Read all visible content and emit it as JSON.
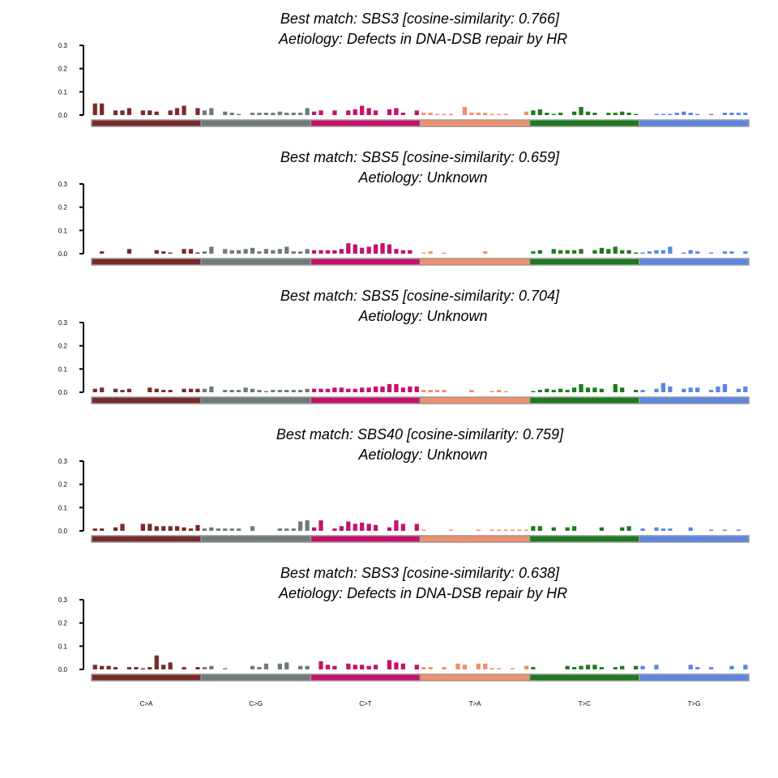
{
  "chart_data": {
    "type": "bar",
    "categories": [
      "C>A",
      "C>G",
      "C>T",
      "T>A",
      "T>C",
      "T>G"
    ],
    "category_colors": [
      "#7a2a2a",
      "#6e7b7b",
      "#c8106a",
      "#f28e6c",
      "#1e7a1e",
      "#5b86e5"
    ],
    "yticks": [
      "0.0",
      "0.1",
      "0.2",
      "0.3"
    ],
    "ylim": [
      0,
      0.3
    ],
    "panels": [
      {
        "title_line1": "Best match: SBS3 [cosine-similarity: 0.766]",
        "title_line2": "Aetiology: Defects in DNA-DSB repair by HR",
        "values": [
          [
            0.05,
            0.05,
            0.0,
            0.02,
            0.02,
            0.03,
            0.0,
            0.02,
            0.02,
            0.015,
            0.0,
            0.02,
            0.03,
            0.04,
            0.0,
            0.03
          ],
          [
            0.02,
            0.03,
            0.0,
            0.015,
            0.01,
            0.005,
            0.0,
            0.01,
            0.01,
            0.01,
            0.01,
            0.015,
            0.01,
            0.01,
            0.01,
            0.03
          ],
          [
            0.015,
            0.02,
            0.0,
            0.02,
            0.0,
            0.02,
            0.025,
            0.04,
            0.03,
            0.02,
            0.0,
            0.025,
            0.03,
            0.01,
            0.0,
            0.02
          ],
          [
            0.01,
            0.01,
            0.005,
            0.005,
            0.005,
            0.0,
            0.035,
            0.01,
            0.01,
            0.01,
            0.005,
            0.005,
            0.005,
            0.0,
            0.0,
            0.015
          ],
          [
            0.02,
            0.025,
            0.01,
            0.005,
            0.01,
            0.0,
            0.015,
            0.035,
            0.015,
            0.01,
            0.0,
            0.01,
            0.01,
            0.015,
            0.01,
            0.005
          ],
          [
            0.0,
            0.0,
            0.005,
            0.005,
            0.005,
            0.01,
            0.015,
            0.01,
            0.005,
            0.0,
            0.005,
            0.0,
            0.01,
            0.01,
            0.01,
            0.01
          ]
        ]
      },
      {
        "title_line1": "Best match: SBS5 [cosine-similarity: 0.659]",
        "title_line2": "Aetiology: Unknown",
        "values": [
          [
            0.0,
            0.01,
            0.0,
            0.0,
            0.0,
            0.02,
            0.0,
            0.0,
            0.0,
            0.015,
            0.01,
            0.005,
            0.0,
            0.02,
            0.02,
            0.005
          ],
          [
            0.01,
            0.03,
            0.0,
            0.02,
            0.015,
            0.015,
            0.02,
            0.025,
            0.01,
            0.02,
            0.015,
            0.02,
            0.03,
            0.01,
            0.01,
            0.02
          ],
          [
            0.015,
            0.015,
            0.015,
            0.015,
            0.02,
            0.045,
            0.04,
            0.025,
            0.03,
            0.04,
            0.045,
            0.04,
            0.02,
            0.015,
            0.015,
            0.0
          ],
          [
            0.005,
            0.01,
            0.0,
            0.005,
            0.0,
            0.0,
            0.0,
            0.0,
            0.0,
            0.01,
            0.0,
            0.0,
            0.0,
            0.0,
            0.0,
            0.0
          ],
          [
            0.01,
            0.015,
            0.0,
            0.02,
            0.015,
            0.015,
            0.015,
            0.02,
            0.0,
            0.015,
            0.025,
            0.02,
            0.03,
            0.015,
            0.015,
            0.005
          ],
          [
            0.005,
            0.01,
            0.015,
            0.015,
            0.03,
            0.0,
            0.005,
            0.015,
            0.01,
            0.0,
            0.005,
            0.0,
            0.01,
            0.01,
            0.0,
            0.01
          ]
        ]
      },
      {
        "title_line1": "Best match: SBS5 [cosine-similarity: 0.704]",
        "title_line2": "Aetiology: Unknown",
        "values": [
          [
            0.015,
            0.02,
            0.0,
            0.015,
            0.01,
            0.015,
            0.0,
            0.0,
            0.02,
            0.015,
            0.01,
            0.01,
            0.0,
            0.015,
            0.015,
            0.015
          ],
          [
            0.015,
            0.025,
            0.0,
            0.01,
            0.01,
            0.01,
            0.02,
            0.015,
            0.01,
            0.005,
            0.01,
            0.01,
            0.01,
            0.01,
            0.01,
            0.015
          ],
          [
            0.015,
            0.015,
            0.015,
            0.02,
            0.02,
            0.015,
            0.015,
            0.02,
            0.02,
            0.025,
            0.025,
            0.035,
            0.035,
            0.02,
            0.025,
            0.025
          ],
          [
            0.01,
            0.01,
            0.01,
            0.01,
            0.0,
            0.0,
            0.0,
            0.01,
            0.0,
            0.0,
            0.005,
            0.01,
            0.005,
            0.0,
            0.0,
            0.0
          ],
          [
            0.005,
            0.01,
            0.015,
            0.01,
            0.015,
            0.01,
            0.02,
            0.035,
            0.02,
            0.02,
            0.015,
            0.0,
            0.035,
            0.02,
            0.0,
            0.01
          ],
          [
            0.01,
            0.0,
            0.015,
            0.04,
            0.025,
            0.0,
            0.015,
            0.02,
            0.02,
            0.0,
            0.01,
            0.025,
            0.035,
            0.0,
            0.015,
            0.025
          ]
        ]
      },
      {
        "title_line1": "Best match: SBS40 [cosine-similarity: 0.759]",
        "title_line2": "Aetiology: Unknown",
        "values": [
          [
            0.01,
            0.01,
            0.0,
            0.015,
            0.03,
            0.0,
            0.0,
            0.03,
            0.03,
            0.02,
            0.02,
            0.02,
            0.02,
            0.015,
            0.01,
            0.025
          ],
          [
            0.01,
            0.015,
            0.01,
            0.01,
            0.01,
            0.01,
            0.0,
            0.02,
            0.0,
            0.0,
            0.0,
            0.01,
            0.01,
            0.01,
            0.04,
            0.045
          ],
          [
            0.015,
            0.045,
            0.0,
            0.01,
            0.02,
            0.04,
            0.03,
            0.035,
            0.03,
            0.025,
            0.0,
            0.015,
            0.045,
            0.03,
            0.0,
            0.03
          ],
          [
            0.005,
            0.0,
            0.0,
            0.0,
            0.005,
            0.0,
            0.0,
            0.0,
            0.005,
            0.0,
            0.005,
            0.005,
            0.005,
            0.005,
            0.005,
            0.005
          ],
          [
            0.02,
            0.02,
            0.0,
            0.015,
            0.0,
            0.015,
            0.02,
            0.0,
            0.0,
            0.0,
            0.015,
            0.0,
            0.0,
            0.015,
            0.02,
            0.0
          ],
          [
            0.01,
            0.0,
            0.015,
            0.01,
            0.01,
            0.0,
            0.0,
            0.015,
            0.0,
            0.0,
            0.005,
            0.0,
            0.005,
            0.0,
            0.005,
            0.0
          ]
        ]
      },
      {
        "title_line1": "Best match: SBS3 [cosine-similarity: 0.638]",
        "title_line2": "Aetiology: Defects in DNA-DSB repair by HR",
        "values": [
          [
            0.02,
            0.015,
            0.015,
            0.01,
            0.0,
            0.01,
            0.01,
            0.005,
            0.01,
            0.06,
            0.02,
            0.03,
            0.0,
            0.01,
            0.0,
            0.01
          ],
          [
            0.01,
            0.015,
            0.0,
            0.005,
            0.0,
            0.0,
            0.0,
            0.015,
            0.01,
            0.025,
            0.0,
            0.025,
            0.03,
            0.0,
            0.015,
            0.015
          ],
          [
            0.0,
            0.035,
            0.02,
            0.015,
            0.0,
            0.025,
            0.02,
            0.02,
            0.015,
            0.02,
            0.0,
            0.04,
            0.03,
            0.025,
            0.0,
            0.02
          ],
          [
            0.01,
            0.01,
            0.0,
            0.01,
            0.0,
            0.025,
            0.02,
            0.0,
            0.025,
            0.025,
            0.005,
            0.005,
            0.0,
            0.005,
            0.0,
            0.015
          ],
          [
            0.01,
            0.0,
            0.0,
            0.0,
            0.0,
            0.015,
            0.01,
            0.015,
            0.02,
            0.02,
            0.01,
            0.0,
            0.01,
            0.015,
            0.0,
            0.015
          ],
          [
            0.015,
            0.0,
            0.02,
            0.0,
            0.0,
            0.0,
            0.0,
            0.02,
            0.01,
            0.0,
            0.01,
            0.0,
            0.0,
            0.015,
            0.0,
            0.02
          ]
        ]
      }
    ]
  }
}
